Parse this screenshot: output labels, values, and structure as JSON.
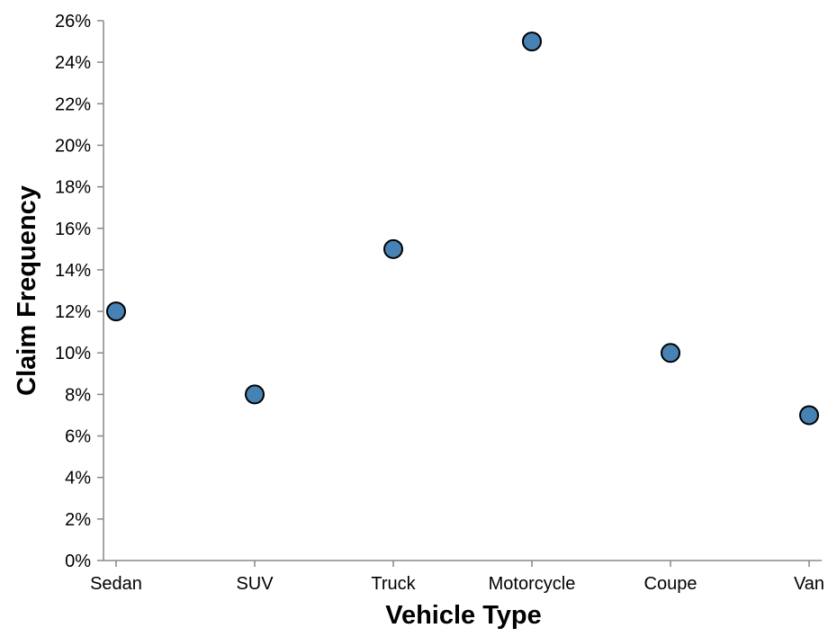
{
  "chart_data": {
    "type": "scatter",
    "title": "",
    "xlabel": "Vehicle Type",
    "ylabel": "Claim Frequency",
    "categories": [
      "Sedan",
      "SUV",
      "Truck",
      "Motorcycle",
      "Coupe",
      "Van"
    ],
    "values": [
      0.12,
      0.08,
      0.15,
      0.25,
      0.1,
      0.07
    ],
    "ylim": [
      0,
      0.26
    ],
    "yticks": [
      0,
      0.02,
      0.04,
      0.06,
      0.08,
      0.1,
      0.12,
      0.14,
      0.16,
      0.18,
      0.2,
      0.22,
      0.24,
      0.26
    ],
    "ytick_labels": [
      "0%",
      "2%",
      "4%",
      "6%",
      "8%",
      "10%",
      "12%",
      "14%",
      "16%",
      "18%",
      "20%",
      "22%",
      "24%",
      "26%"
    ],
    "grid": false,
    "legend": "none",
    "colors": {
      "point_fill": "#4682b4",
      "point_stroke": "#000000",
      "axis": "#888888"
    }
  }
}
